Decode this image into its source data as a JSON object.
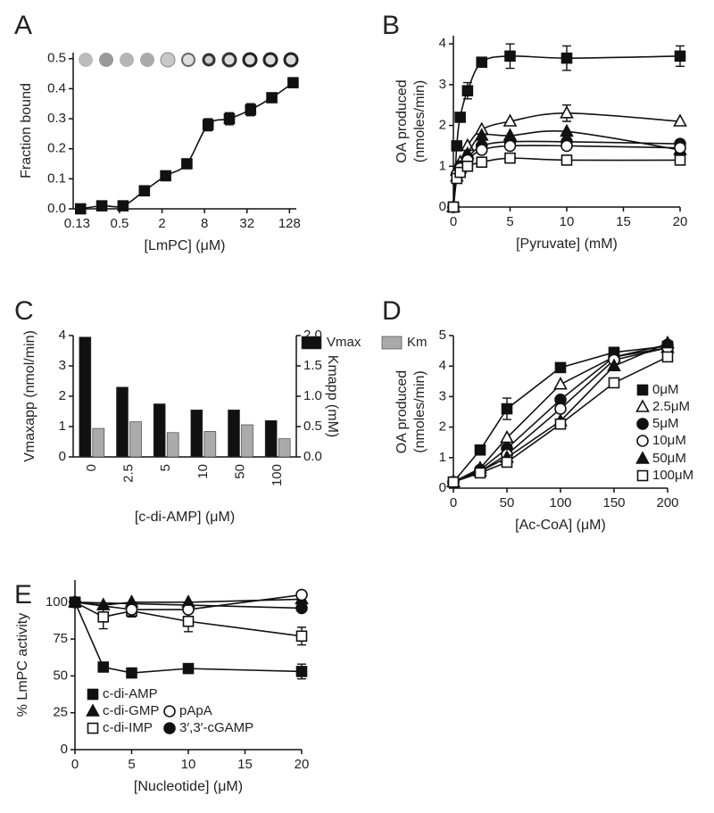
{
  "chart_data": [
    {
      "type": "line",
      "label": "A",
      "xlabel": "[LmPC] (μM)",
      "ylabel": [
        "Fraction bound"
      ],
      "xscale": "log2",
      "xlim": [
        0.11,
        160
      ],
      "ylim": [
        0,
        0.52
      ],
      "curve": "smooth",
      "xticks": [
        {
          "value": 0.125,
          "label": "0.13"
        },
        0.5,
        2,
        8,
        32,
        128
      ],
      "yticks": [
        {
          "value": 0,
          "label": "0.0"
        },
        0.1,
        0.2,
        0.3,
        0.4,
        0.5
      ],
      "x": [
        0.14,
        0.28,
        0.56,
        1.125,
        2.25,
        4.5,
        9,
        18,
        36,
        72,
        144
      ],
      "series": [
        {
          "color": "#111111",
          "marker": "square",
          "filled": true,
          "values": [
            0.0,
            0.01,
            0.01,
            0.06,
            0.11,
            0.15,
            0.28,
            0.3,
            0.33,
            0.37,
            0.42
          ],
          "errors": [
            null,
            null,
            null,
            null,
            null,
            null,
            0.02,
            0.02,
            0.02,
            null,
            null
          ]
        }
      ]
    },
    {
      "type": "line",
      "label": "B",
      "xlabel": "[Pyruvate] (mM)",
      "ylabel": [
        "OA produced",
        "(nmoles/min)"
      ],
      "xlim": [
        0,
        20
      ],
      "ylim": [
        0,
        4.2
      ],
      "curve": "smooth",
      "xticks": [
        0,
        5,
        10,
        15,
        20
      ],
      "yticks": [
        0,
        1,
        2,
        3,
        4
      ],
      "x": [
        0,
        0.3,
        0.6,
        1.25,
        2.5,
        5,
        10,
        20
      ],
      "series": [
        {
          "color": "#111111",
          "marker": "square",
          "filled": true,
          "values": [
            0,
            1.5,
            2.2,
            2.85,
            3.55,
            3.7,
            3.65,
            3.7
          ],
          "errors": [
            null,
            null,
            null,
            0.2,
            null,
            0.3,
            0.3,
            0.25
          ]
        },
        {
          "color": "#111111",
          "marker": "triangle",
          "filled": false,
          "values": [
            0,
            0.9,
            1.1,
            1.5,
            1.9,
            2.1,
            2.3,
            2.1
          ],
          "errors": [
            null,
            null,
            null,
            null,
            null,
            null,
            0.2,
            null
          ]
        },
        {
          "color": "#111111",
          "marker": "circle",
          "filled": true,
          "values": [
            0,
            0.8,
            1.0,
            1.2,
            1.5,
            1.6,
            1.6,
            1.55
          ]
        },
        {
          "color": "#111111",
          "marker": "triangle",
          "filled": true,
          "values": [
            0,
            0.75,
            0.95,
            1.3,
            1.75,
            1.75,
            1.85,
            1.4
          ]
        },
        {
          "color": "#111111",
          "marker": "circle",
          "filled": false,
          "values": [
            0,
            0.8,
            0.95,
            1.15,
            1.4,
            1.5,
            1.5,
            1.45
          ]
        },
        {
          "color": "#111111",
          "marker": "square",
          "filled": false,
          "values": [
            0,
            0.7,
            0.85,
            1.0,
            1.1,
            1.2,
            1.15,
            1.15
          ]
        }
      ]
    },
    {
      "type": "bar",
      "label": "C",
      "xlabel": "[c-di-AMP] (μM)",
      "ylabel": [
        "Vmaxapp (nmol/min)"
      ],
      "y2label": "Kmapp (mM)",
      "categories": [
        "0",
        "2.5",
        "5",
        "10",
        "50",
        "100"
      ],
      "ylim": [
        0,
        4
      ],
      "yticks": [
        0,
        1,
        2,
        3,
        4
      ],
      "y2lim": [
        0,
        2
      ],
      "y2ticks": [
        {
          "value": 0,
          "label": "0.0"
        },
        0.5,
        {
          "value": 1,
          "label": "1.0"
        },
        1.5,
        {
          "value": 2,
          "label": "2.0"
        }
      ],
      "series": [
        {
          "name": "Vmax",
          "color": "#111111",
          "values": [
            3.95,
            2.3,
            1.75,
            1.55,
            1.55,
            1.2
          ]
        },
        {
          "name": "Km",
          "color": "#aaaaaa",
          "axis": "y2",
          "values": [
            0.47,
            0.58,
            0.4,
            0.42,
            0.53,
            0.3
          ]
        }
      ]
    },
    {
      "type": "line",
      "label": "D",
      "xlabel": "[Ac-CoA] (μM)",
      "ylabel": [
        "OA produced",
        "(nmoles/min)"
      ],
      "xlim": [
        0,
        200
      ],
      "ylim": [
        0,
        5
      ],
      "xticks": [
        0,
        50,
        100,
        150,
        200
      ],
      "yticks": [
        0,
        1,
        2,
        3,
        4,
        5
      ],
      "x": [
        0,
        25,
        50,
        100,
        150,
        200
      ],
      "series": [
        {
          "name": "0μM",
          "color": "#111111",
          "marker": "square",
          "filled": true,
          "values": [
            0.2,
            1.25,
            2.6,
            3.95,
            4.45,
            4.65
          ],
          "errors": [
            null,
            null,
            0.35,
            null,
            null,
            null
          ]
        },
        {
          "name": "2.5μM",
          "color": "#111111",
          "marker": "triangle",
          "filled": false,
          "values": [
            0.2,
            0.65,
            1.65,
            3.4,
            4.3,
            4.6
          ]
        },
        {
          "name": "5μM",
          "color": "#111111",
          "marker": "circle",
          "filled": true,
          "values": [
            0.2,
            0.6,
            1.3,
            2.9,
            4.3,
            4.7
          ]
        },
        {
          "name": "10μM",
          "color": "#111111",
          "marker": "circle",
          "filled": false,
          "values": [
            0.2,
            0.55,
            1.1,
            2.6,
            4.2,
            4.6
          ]
        },
        {
          "name": "50μM",
          "color": "#111111",
          "marker": "triangle",
          "filled": true,
          "values": [
            0.2,
            0.55,
            1.0,
            2.2,
            4.0,
            4.75
          ]
        },
        {
          "name": "100μM",
          "color": "#111111",
          "marker": "square",
          "filled": false,
          "values": [
            0.2,
            0.5,
            0.85,
            2.1,
            3.45,
            4.3
          ]
        }
      ]
    },
    {
      "type": "line",
      "label": "E",
      "xlabel": "[Nucleotide] (μM)",
      "ylabel": [
        "% LmPC activity"
      ],
      "xlim": [
        0,
        20
      ],
      "ylim": [
        0,
        115
      ],
      "xticks": [
        0,
        5,
        10,
        15,
        20
      ],
      "yticks": [
        0,
        25,
        50,
        75,
        100
      ],
      "series": [
        {
          "name": "c-di-AMP",
          "color": "#111111",
          "marker": "square",
          "filled": true,
          "x": [
            0,
            2.5,
            5,
            10,
            20
          ],
          "values": [
            100,
            56,
            52,
            55,
            53
          ],
          "errors": [
            null,
            null,
            null,
            null,
            5
          ]
        },
        {
          "name": "c-di-GMP",
          "color": "#111111",
          "marker": "triangle",
          "filled": true,
          "x": [
            0,
            2.5,
            5,
            10,
            20
          ],
          "values": [
            100,
            98,
            100,
            100,
            102
          ]
        },
        {
          "name": "c-di-IMP",
          "color": "#111111",
          "marker": "square",
          "filled": false,
          "x": [
            0,
            2.5,
            5,
            10,
            20
          ],
          "values": [
            100,
            90,
            94,
            87,
            77
          ],
          "errors": [
            null,
            8,
            4,
            7,
            6
          ]
        },
        {
          "name": "pApA",
          "color": "#111111",
          "marker": "circle",
          "filled": false,
          "x": [
            0,
            5,
            10,
            20
          ],
          "values": [
            100,
            95,
            95,
            105
          ]
        },
        {
          "name": "3′,3′-cGAMP",
          "color": "#111111",
          "marker": "circle",
          "filled": true,
          "x": [
            0,
            20
          ],
          "values": [
            100,
            96
          ]
        }
      ]
    }
  ]
}
